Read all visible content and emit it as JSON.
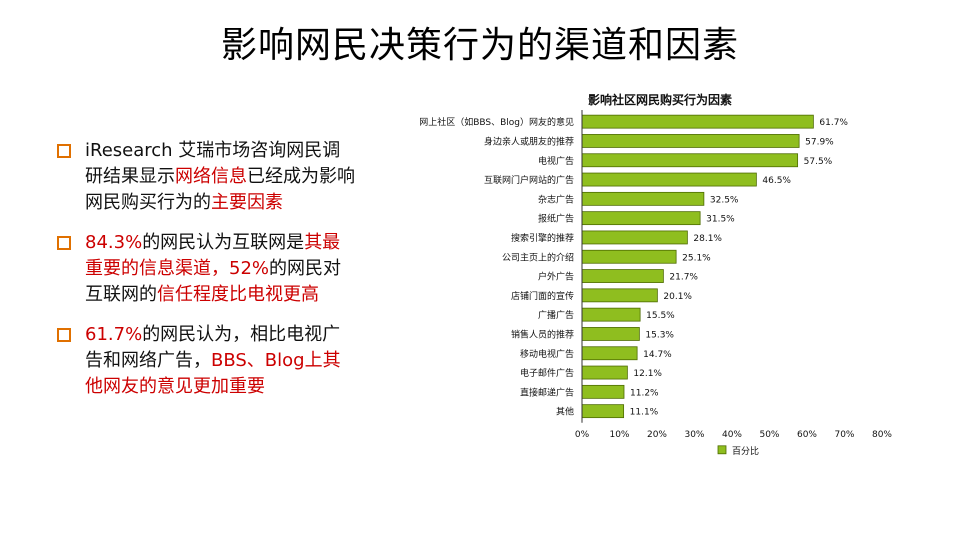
{
  "slide": {
    "title": "影响网民决策行为的渠道和因素"
  },
  "bullets": [
    {
      "segments": [
        {
          "text": "iResearch 艾瑞市场咨询网民调研结果显示",
          "highlight": false
        },
        {
          "text": "网络信息",
          "highlight": true
        },
        {
          "text": "已经成为影响网民购买行为的",
          "highlight": false
        },
        {
          "text": "主要因素",
          "highlight": true
        }
      ]
    },
    {
      "segments": [
        {
          "text": "84.3%",
          "highlight": true
        },
        {
          "text": "的网民认为互联网是",
          "highlight": false
        },
        {
          "text": "其最重要的信息渠道，52%",
          "highlight": true
        },
        {
          "text": "的网民对互联网的",
          "highlight": false
        },
        {
          "text": "信任程度比电视更高",
          "highlight": true
        }
      ]
    },
    {
      "segments": [
        {
          "text": "61.7%",
          "highlight": true
        },
        {
          "text": "的网民认为，相比电视广告和网络广告，",
          "highlight": false
        },
        {
          "text": "BBS、Blog上其他网友的意见更加",
          "highlight": true
        },
        {
          "text": "重要",
          "highlight": true
        }
      ]
    }
  ],
  "colors": {
    "bar": "#8fbe1f",
    "bar_stroke": "#4d6b00",
    "marker": "#e07000",
    "highlight": "#cc0000"
  },
  "chart_data": {
    "type": "bar",
    "orientation": "horizontal",
    "title": "影响社区网民购买行为因素",
    "categories": [
      "网上社区（如BBS、Blog）网友的意见",
      "身边亲人或朋友的推荐",
      "电视广告",
      "互联网门户网站的广告",
      "杂志广告",
      "报纸广告",
      "搜索引擎的推荐",
      "公司主页上的介绍",
      "户外广告",
      "店铺门面的宣传",
      "广播广告",
      "销售人员的推荐",
      "移动电视广告",
      "电子邮件广告",
      "直接邮递广告",
      "其他"
    ],
    "series": [
      {
        "name": "百分比",
        "values": [
          61.7,
          57.9,
          57.5,
          46.5,
          32.5,
          31.5,
          28.1,
          25.1,
          21.7,
          20.1,
          15.5,
          15.3,
          14.7,
          12.1,
          11.2,
          11.1
        ],
        "labels": [
          "61.7%",
          "57.9%",
          "57.5%",
          "46.5%",
          "32.5%",
          "31.5%",
          "28.1%",
          "25.1%",
          "21.7%",
          "20.1%",
          "15.5%",
          "15.3%",
          "14.7%",
          "12.1%",
          "11.2%",
          "11.1%"
        ]
      }
    ],
    "xticks": [
      "0%",
      "10%",
      "20%",
      "30%",
      "40%",
      "50%",
      "60%",
      "70%",
      "80%"
    ],
    "xlim": [
      0,
      80
    ],
    "legend": "bottom",
    "grid": false
  }
}
